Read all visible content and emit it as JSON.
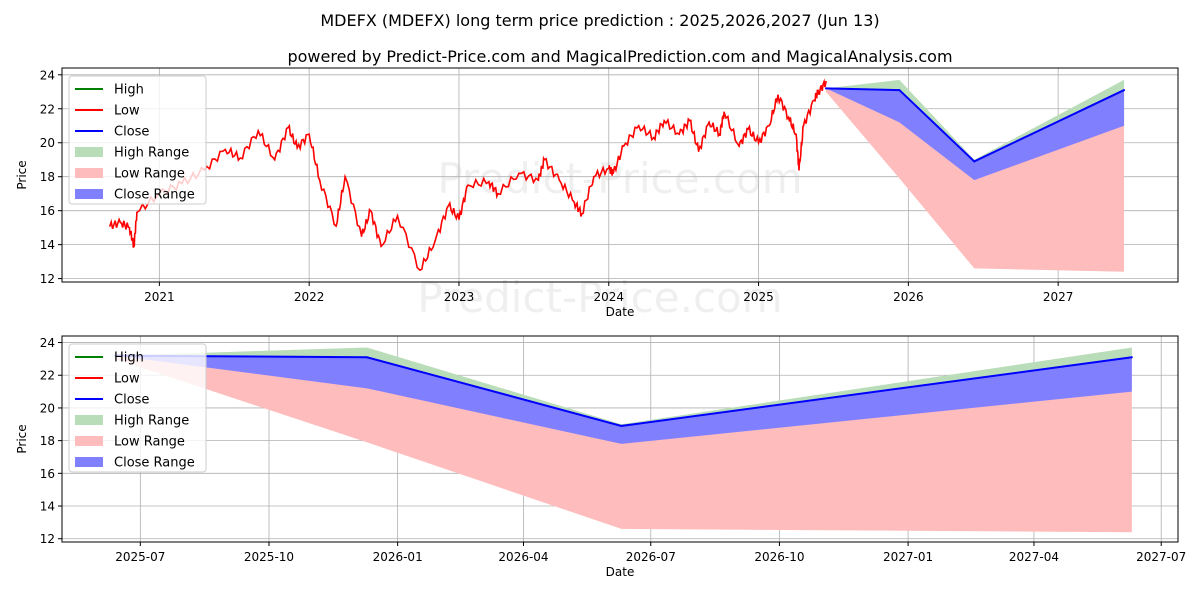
{
  "title": "MDEFX (MDEFX) long term price prediction : 2025,2026,2027 (Jun 13)",
  "subtitle": "powered by Predict-Price.com and MagicalPrediction.com and MagicalAnalysis.com",
  "watermark": "Predict-Price.com",
  "colors": {
    "high": "#008000",
    "low": "#ff0000",
    "close": "#0000ff",
    "high_range": "#b9dcb9",
    "low_range": "#ffbcbc",
    "close_range": "#8080ff"
  },
  "chart_data": [
    {
      "type": "line",
      "xlabel": "Date",
      "ylabel": "Price",
      "ylim": [
        11.8,
        24.4
      ],
      "xlim": [
        2020.35,
        2027.8
      ],
      "yticks": [
        "12",
        "14",
        "16",
        "18",
        "20",
        "22",
        "24"
      ],
      "xticks": [
        "2021",
        "2022",
        "2023",
        "2024",
        "2025",
        "2026",
        "2027"
      ],
      "grid": true,
      "legend": {
        "placement": "top-left",
        "entries": [
          "High",
          "Low",
          "Close",
          "High Range",
          "Low Range",
          "Close Range"
        ]
      },
      "history": {
        "x": [
          2020.67,
          2020.74,
          2020.8,
          2020.83,
          2020.85,
          2021.0,
          2021.15,
          2021.3,
          2021.44,
          2021.54,
          2021.66,
          2021.77,
          2021.86,
          2021.92,
          2022.0,
          2022.07,
          2022.18,
          2022.24,
          2022.35,
          2022.41,
          2022.48,
          2022.59,
          2022.74,
          2022.84,
          2022.93,
          2023.0,
          2023.06,
          2023.2,
          2023.26,
          2023.4,
          2023.53,
          2023.57,
          2023.67,
          2023.77,
          2023.82,
          2023.9,
          2024.0,
          2024.03,
          2024.1,
          2024.2,
          2024.3,
          2024.37,
          2024.47,
          2024.54,
          2024.6,
          2024.67,
          2024.74,
          2024.77,
          2024.87,
          2024.93,
          2025.0,
          2025.07,
          2025.13,
          2025.2,
          2025.25,
          2025.27,
          2025.3,
          2025.37,
          2025.4,
          2025.45
        ],
        "low": [
          15.1,
          15.3,
          15.0,
          13.9,
          15.9,
          17.0,
          17.6,
          18.4,
          19.6,
          19.1,
          20.7,
          19.0,
          20.9,
          19.7,
          20.5,
          17.8,
          15.1,
          18.0,
          14.5,
          16.0,
          13.9,
          15.7,
          12.5,
          14.2,
          16.3,
          15.5,
          17.5,
          17.7,
          17.0,
          18.2,
          17.8,
          19.0,
          17.8,
          16.5,
          15.8,
          18.0,
          18.5,
          18.2,
          19.8,
          21.0,
          20.3,
          21.3,
          20.5,
          21.3,
          19.5,
          21.2,
          20.5,
          21.8,
          19.8,
          20.8,
          20.0,
          21.0,
          22.8,
          21.5,
          20.5,
          18.4,
          21.0,
          22.5,
          23.0,
          23.6
        ]
      },
      "forecast": {
        "dates": [
          "2025-06-13",
          "2025-12-10",
          "2026-06-10",
          "2027-06-10"
        ],
        "x": [
          2025.45,
          2025.94,
          2026.44,
          2027.44
        ],
        "close": [
          23.2,
          23.1,
          18.9,
          23.1
        ],
        "high_range_upper": [
          23.2,
          23.7,
          19.0,
          23.7
        ],
        "close_range_lower": [
          23.2,
          21.2,
          17.8,
          21.0
        ],
        "low_range_lower": [
          23.0,
          17.9,
          12.6,
          12.4
        ]
      }
    },
    {
      "type": "area",
      "xlabel": "Date",
      "ylabel": "Price",
      "ylim": [
        11.8,
        24.4
      ],
      "xlim": [
        "2025-05-06",
        "2027-07-13"
      ],
      "yticks": [
        "12",
        "14",
        "16",
        "18",
        "20",
        "22",
        "24"
      ],
      "xticks": [
        "2025-07",
        "2025-10",
        "2026-01",
        "2026-04",
        "2026-07",
        "2026-10",
        "2027-01",
        "2027-04",
        "2027-07"
      ],
      "grid": true,
      "legend": {
        "placement": "top-left",
        "entries": [
          "High",
          "Low",
          "Close",
          "High Range",
          "Low Range",
          "Close Range"
        ]
      }
    }
  ]
}
